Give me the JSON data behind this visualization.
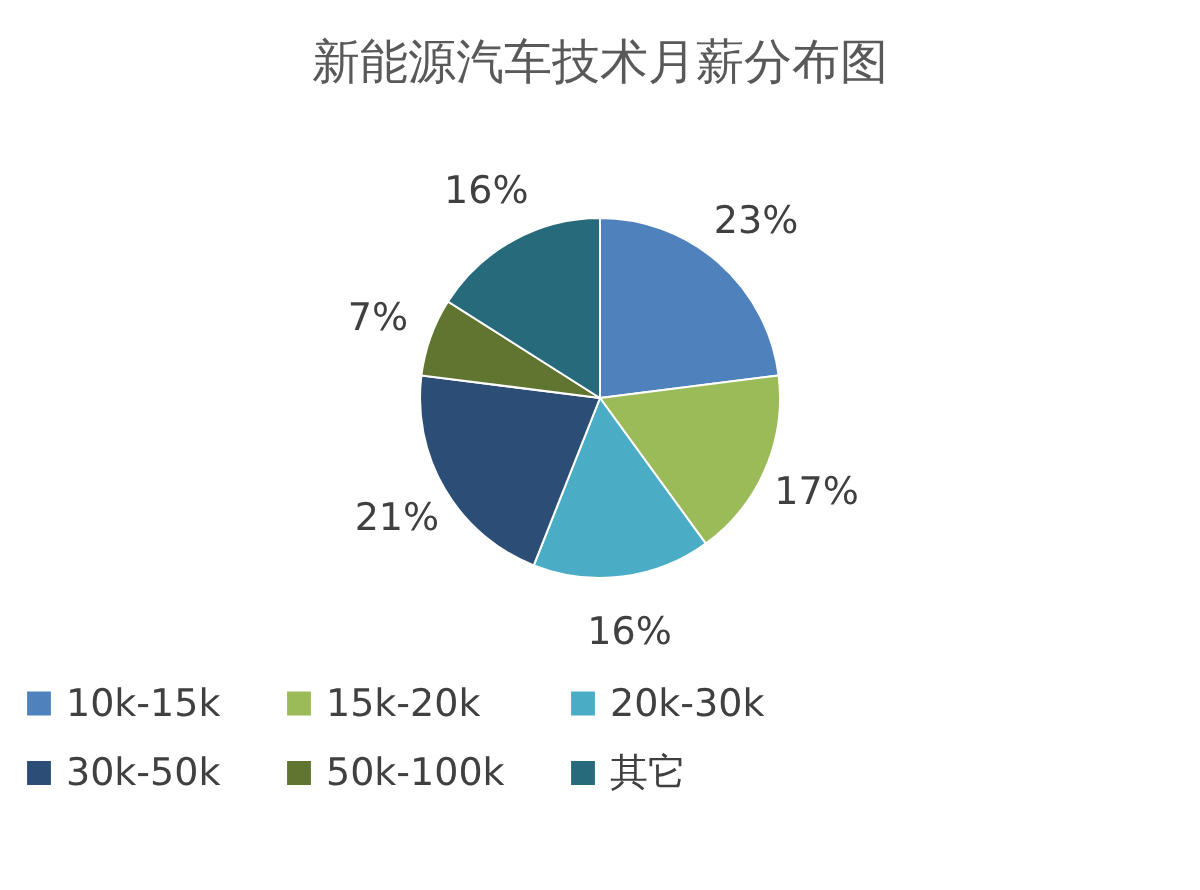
{
  "chart_data": {
    "type": "pie",
    "title": "新能源汽车技术月薪分布图",
    "categories": [
      "10k-15k",
      "15k-20k",
      "20k-30k",
      "30k-50k",
      "50k-100k",
      "其它"
    ],
    "values": [
      23,
      17,
      16,
      21,
      7,
      16
    ],
    "value_labels": [
      "23%",
      "17%",
      "16%",
      "21%",
      "7%",
      "16%"
    ],
    "colors": [
      "#4f81bd",
      "#9bbb59",
      "#4bacc6",
      "#2c4d75",
      "#5f7530",
      "#276a7c"
    ],
    "legend": "bottom"
  }
}
